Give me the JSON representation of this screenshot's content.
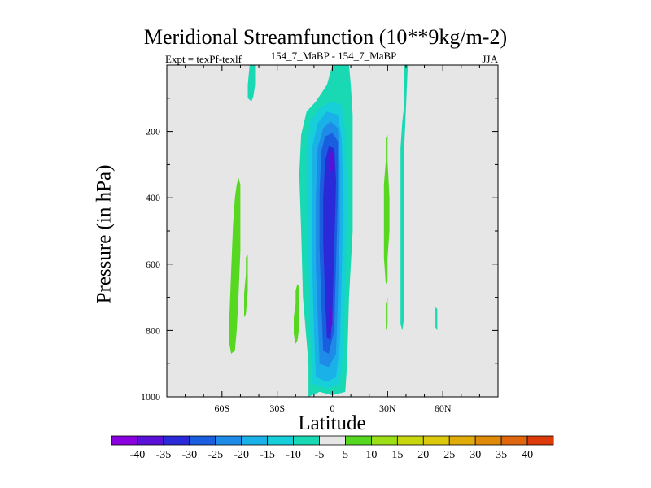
{
  "title": "Meridional Streamfunction (10**9kg/m-2)",
  "subtitle_left": "Expt = texPf-texlf",
  "subtitle_center": "154_7_MaBP - 154_7_MaBP",
  "subtitle_right": "JJA",
  "colors": {
    "background_field": "#e6e6e6",
    "neg40": "#8a00e0",
    "neg35": "#5a10d6",
    "neg30": "#2a2ad8",
    "neg25": "#1a5ee0",
    "neg20": "#1f8be8",
    "neg15": "#1ab1e8",
    "neg10": "#16cfd9",
    "neg5": "#18d9b4",
    "neutral": "#e6e6e6",
    "pos5": "#55d81f",
    "pos10": "#9be016",
    "pos15": "#c8d60e",
    "pos20": "#ddc90c",
    "pos25": "#e0ac0a",
    "pos30": "#e08a0a",
    "pos35": "#e0660e",
    "pos40": "#dd3a0a"
  },
  "chart_data": {
    "type": "heatmap",
    "title": "Meridional Streamfunction (10**9kg/m-2)",
    "xlabel": "Latitude",
    "ylabel": "Pressure (in hPa)",
    "x_range": [
      -90,
      90
    ],
    "y_range": [
      1000,
      0
    ],
    "y_inverted": true,
    "x_ticks": [
      {
        "value": -60,
        "label": "60S"
      },
      {
        "value": -30,
        "label": "30S"
      },
      {
        "value": 0,
        "label": "0"
      },
      {
        "value": 30,
        "label": "30N"
      },
      {
        "value": 60,
        "label": "60N"
      }
    ],
    "y_ticks": [
      {
        "value": 200,
        "label": "200"
      },
      {
        "value": 400,
        "label": "400"
      },
      {
        "value": 600,
        "label": "600"
      },
      {
        "value": 800,
        "label": "800"
      },
      {
        "value": 1000,
        "label": "1000"
      }
    ],
    "contour_levels": [
      -40,
      -35,
      -30,
      -25,
      -20,
      -15,
      -10,
      -5,
      5,
      10,
      15,
      20,
      25,
      30,
      35,
      40
    ],
    "colorbar_labels": [
      "-40",
      "-35",
      "-30",
      "-25",
      "-20",
      "-15",
      "-10",
      "-5",
      "5",
      "10",
      "15",
      "20",
      "25",
      "30",
      "35",
      "40"
    ],
    "colorbar_swatches": [
      "neg40",
      "neg35",
      "neg30",
      "neg25",
      "neg20",
      "neg15",
      "neg10",
      "neg5",
      "neutral",
      "pos5",
      "pos10",
      "pos15",
      "pos20",
      "pos25",
      "pos30",
      "pos35",
      "pos40"
    ],
    "regions": [
      {
        "name": "equatorial-cell-neg5",
        "color": "neg5",
        "points": [
          [
            -13,
            1000
          ],
          [
            -13,
            900
          ],
          [
            -16,
            700
          ],
          [
            -17,
            500
          ],
          [
            -18,
            330
          ],
          [
            -17,
            210
          ],
          [
            -14,
            140
          ],
          [
            -9,
            110
          ],
          [
            -3,
            60
          ],
          [
            0,
            0
          ],
          [
            9,
            0
          ],
          [
            10,
            60
          ],
          [
            11,
            150
          ],
          [
            11,
            300
          ],
          [
            11,
            500
          ],
          [
            9,
            700
          ],
          [
            8,
            900
          ],
          [
            7,
            985
          ],
          [
            0,
            995
          ],
          [
            -7,
            985
          ]
        ]
      },
      {
        "name": "equatorial-cell-neg10",
        "color": "neg10",
        "points": [
          [
            -11,
            960
          ],
          [
            -12,
            800
          ],
          [
            -13,
            600
          ],
          [
            -14,
            400
          ],
          [
            -14,
            250
          ],
          [
            -12,
            170
          ],
          [
            -7,
            130
          ],
          [
            -1,
            110
          ],
          [
            5,
            120
          ],
          [
            7,
            200
          ],
          [
            8,
            400
          ],
          [
            7,
            650
          ],
          [
            6,
            850
          ],
          [
            4,
            960
          ],
          [
            -3,
            975
          ]
        ]
      },
      {
        "name": "equatorial-cell-neg15",
        "color": "neg15",
        "points": [
          [
            -9,
            940
          ],
          [
            -10,
            800
          ],
          [
            -11,
            600
          ],
          [
            -11,
            400
          ],
          [
            -11,
            250
          ],
          [
            -8,
            175
          ],
          [
            -3,
            140
          ],
          [
            3,
            150
          ],
          [
            5,
            220
          ],
          [
            6,
            400
          ],
          [
            5,
            650
          ],
          [
            4,
            850
          ],
          [
            2,
            940
          ],
          [
            -3,
            955
          ]
        ]
      },
      {
        "name": "equatorial-cell-neg20",
        "color": "neg20",
        "points": [
          [
            -7,
            900
          ],
          [
            -8,
            750
          ],
          [
            -9,
            600
          ],
          [
            -9,
            400
          ],
          [
            -8,
            250
          ],
          [
            -5,
            190
          ],
          [
            -1,
            170
          ],
          [
            3,
            190
          ],
          [
            4,
            300
          ],
          [
            4,
            500
          ],
          [
            3,
            700
          ],
          [
            2,
            870
          ],
          [
            -2,
            910
          ]
        ]
      },
      {
        "name": "equatorial-cell-neg25",
        "color": "neg25",
        "points": [
          [
            -5,
            860
          ],
          [
            -6,
            720
          ],
          [
            -7,
            550
          ],
          [
            -7,
            380
          ],
          [
            -6,
            260
          ],
          [
            -4,
            215
          ],
          [
            0,
            205
          ],
          [
            3,
            230
          ],
          [
            3,
            380
          ],
          [
            2,
            600
          ],
          [
            1,
            800
          ],
          [
            -2,
            870
          ]
        ]
      },
      {
        "name": "equatorial-cell-neg30",
        "color": "neg30",
        "points": [
          [
            -3,
            820
          ],
          [
            -4,
            700
          ],
          [
            -5,
            530
          ],
          [
            -5,
            400
          ],
          [
            -4,
            290
          ],
          [
            -2,
            245
          ],
          [
            1,
            250
          ],
          [
            2,
            350
          ],
          [
            1,
            550
          ],
          [
            0,
            750
          ],
          [
            -1,
            830
          ]
        ]
      },
      {
        "name": "equatorial-cell-neg35-upper",
        "color": "neg35",
        "points": [
          [
            -2,
            310
          ],
          [
            -1,
            260
          ],
          [
            1,
            265
          ],
          [
            1,
            300
          ],
          [
            0,
            320
          ],
          [
            -1,
            320
          ]
        ]
      },
      {
        "name": "equatorial-cell-neg35-lower",
        "color": "neg35",
        "points": [
          [
            -2,
            800
          ],
          [
            -2,
            750
          ],
          [
            -1,
            730
          ],
          [
            0,
            745
          ],
          [
            0,
            780
          ],
          [
            -1,
            805
          ]
        ]
      },
      {
        "name": "positive-band-45s",
        "color": "pos5",
        "points": [
          [
            -56,
            840
          ],
          [
            -56,
            760
          ],
          [
            -55,
            620
          ],
          [
            -54,
            480
          ],
          [
            -53,
            400
          ],
          [
            -52,
            360
          ],
          [
            -51,
            340
          ],
          [
            -50,
            360
          ],
          [
            -50,
            430
          ],
          [
            -50,
            560
          ],
          [
            -51,
            690
          ],
          [
            -52,
            800
          ],
          [
            -53,
            860
          ],
          [
            -55,
            870
          ]
        ]
      },
      {
        "name": "positive-band-47s",
        "color": "pos5",
        "points": [
          [
            -48,
            760
          ],
          [
            -48,
            690
          ],
          [
            -47,
            630
          ],
          [
            -47,
            580
          ],
          [
            -46,
            570
          ],
          [
            -46,
            600
          ],
          [
            -46,
            680
          ],
          [
            -47,
            750
          ]
        ]
      },
      {
        "name": "positive-band-20s",
        "color": "pos5",
        "points": [
          [
            -21,
            810
          ],
          [
            -21,
            760
          ],
          [
            -20,
            720
          ],
          [
            -20,
            680
          ],
          [
            -19,
            660
          ],
          [
            -18,
            670
          ],
          [
            -18,
            720
          ],
          [
            -18,
            790
          ],
          [
            -19,
            830
          ],
          [
            -20,
            840
          ]
        ]
      },
      {
        "name": "positive-band-28n",
        "color": "pos5",
        "points": [
          [
            28,
            580
          ],
          [
            28,
            500
          ],
          [
            28,
            430
          ],
          [
            28,
            360
          ],
          [
            29,
            290
          ],
          [
            29,
            220
          ],
          [
            30,
            210
          ],
          [
            30,
            290
          ],
          [
            31,
            400
          ],
          [
            31,
            500
          ],
          [
            30,
            580
          ],
          [
            30,
            650
          ],
          [
            29,
            660
          ]
        ]
      },
      {
        "name": "positive-band-28n-base",
        "color": "pos5",
        "points": [
          [
            29,
            790
          ],
          [
            29,
            720
          ],
          [
            30,
            700
          ],
          [
            30,
            780
          ],
          [
            29,
            800
          ]
        ]
      },
      {
        "name": "cyan-strip-38n",
        "color": "neg5",
        "points": [
          [
            37,
            780
          ],
          [
            37,
            700
          ],
          [
            37,
            600
          ],
          [
            37,
            500
          ],
          [
            37,
            380
          ],
          [
            37,
            250
          ],
          [
            38,
            170
          ],
          [
            39,
            120
          ],
          [
            39,
            0
          ],
          [
            41,
            0
          ],
          [
            40,
            130
          ],
          [
            39,
            250
          ],
          [
            39,
            400
          ],
          [
            39,
            600
          ],
          [
            39,
            760
          ],
          [
            38,
            800
          ]
        ]
      },
      {
        "name": "cyan-blob-47s-top",
        "color": "neg5",
        "points": [
          [
            -46,
            100
          ],
          [
            -46,
            60
          ],
          [
            -45,
            0
          ],
          [
            -42,
            0
          ],
          [
            -42,
            60
          ],
          [
            -43,
            95
          ],
          [
            -44,
            110
          ]
        ]
      },
      {
        "name": "cyan-blob-60n",
        "color": "neg5",
        "points": [
          [
            56,
            790
          ],
          [
            56,
            750
          ],
          [
            56,
            730
          ],
          [
            57,
            735
          ],
          [
            57,
            770
          ],
          [
            57,
            800
          ]
        ]
      }
    ]
  }
}
